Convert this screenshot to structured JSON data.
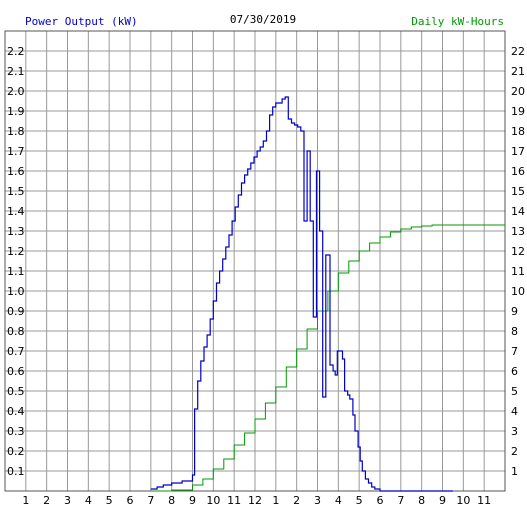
{
  "chart_data": {
    "type": "line",
    "title": "07/30/2019",
    "left_axis_label": "Power Output (kW)",
    "right_axis_label": "Daily kW-Hours",
    "x_tick_labels": [
      "1",
      "2",
      "3",
      "4",
      "5",
      "6",
      "7",
      "8",
      "9",
      "10",
      "11",
      "12",
      "1",
      "2",
      "3",
      "4",
      "5",
      "6",
      "7",
      "8",
      "9",
      "10",
      "11"
    ],
    "x_range_hours": [
      0,
      24
    ],
    "y_left": {
      "range": [
        0,
        2.3
      ],
      "ticks": [
        "0.1",
        "0.2",
        "0.3",
        "0.4",
        "0.5",
        "0.6",
        "0.7",
        "0.8",
        "0.9",
        "1.0",
        "1.1",
        "1.2",
        "1.3",
        "1.4",
        "1.5",
        "1.6",
        "1.7",
        "1.8",
        "1.9",
        "2.0",
        "2.1",
        "2.2"
      ]
    },
    "y_right": {
      "range": [
        0,
        23
      ],
      "ticks": [
        "1",
        "2",
        "3",
        "4",
        "5",
        "6",
        "7",
        "8",
        "9",
        "10",
        "11",
        "12",
        "13",
        "14",
        "15",
        "16",
        "17",
        "18",
        "19",
        "20",
        "21",
        "22"
      ]
    },
    "grid": true,
    "colors": {
      "power": "#0000cc",
      "energy": "#009900",
      "left_labels": "#0000cc",
      "right_labels": "#009900",
      "grid": "#999999"
    },
    "series": [
      {
        "name": "Power Output (kW)",
        "hour": [
          7.0,
          7.3,
          7.6,
          8.0,
          8.2,
          8.5,
          8.8,
          9.0,
          9.1,
          9.25,
          9.4,
          9.55,
          9.7,
          9.85,
          10.0,
          10.15,
          10.3,
          10.45,
          10.6,
          10.75,
          10.9,
          11.05,
          11.2,
          11.35,
          11.5,
          11.65,
          11.8,
          11.95,
          12.1,
          12.25,
          12.4,
          12.55,
          12.7,
          12.85,
          13.0,
          13.15,
          13.3,
          13.45,
          13.6,
          13.75,
          13.9,
          14.05,
          14.2,
          14.35,
          14.5,
          14.65,
          14.8,
          14.95,
          15.1,
          15.25,
          15.4,
          15.5,
          15.6,
          15.75,
          15.85,
          15.95,
          16.05,
          16.2,
          16.3,
          16.45,
          16.55,
          16.7,
          16.8,
          16.95,
          17.05,
          17.15,
          17.3,
          17.45,
          17.6,
          17.75,
          17.9,
          18.0,
          18.15,
          18.3,
          18.45,
          18.6,
          18.75,
          18.9,
          19.05,
          19.2,
          19.35,
          19.5,
          19.65,
          19.8,
          19.95,
          20.1,
          20.3,
          20.5,
          20.8,
          21.2,
          21.5
        ],
        "values": [
          0.01,
          0.02,
          0.03,
          0.04,
          0.04,
          0.05,
          0.05,
          0.08,
          0.41,
          0.55,
          0.65,
          0.72,
          0.78,
          0.86,
          0.95,
          1.04,
          1.1,
          1.16,
          1.22,
          1.28,
          1.35,
          1.42,
          1.48,
          1.54,
          1.58,
          1.61,
          1.64,
          1.67,
          1.7,
          1.72,
          1.75,
          1.8,
          1.88,
          1.92,
          1.94,
          1.94,
          1.96,
          1.97,
          1.86,
          1.84,
          1.83,
          1.82,
          1.8,
          1.35,
          1.7,
          1.35,
          0.87,
          1.6,
          1.3,
          0.47,
          1.18,
          1.18,
          0.63,
          0.6,
          0.58,
          0.7,
          0.7,
          0.66,
          0.5,
          0.48,
          0.46,
          0.38,
          0.3,
          0.22,
          0.15,
          0.1,
          0.06,
          0.04,
          0.02,
          0.01,
          0.01,
          0.0,
          0.0,
          0.0,
          0.0,
          0.0,
          0.0,
          0.0,
          0.0,
          0.0,
          0.0,
          0.0,
          0.0,
          0.0,
          0.0,
          0.0,
          0.0,
          0.0,
          0.0,
          0.0,
          0.0
        ]
      },
      {
        "name": "Daily kW-Hours",
        "hour": [
          7.0,
          8.0,
          9.0,
          9.5,
          10.0,
          10.5,
          11.0,
          11.5,
          12.0,
          12.5,
          13.0,
          13.5,
          14.0,
          14.5,
          15.0,
          15.5,
          16.0,
          16.5,
          17.0,
          17.5,
          18.0,
          18.5,
          19.0,
          19.5,
          20.0,
          20.5,
          21.0,
          22.0,
          23.0,
          24.0
        ],
        "values": [
          0.0,
          0.05,
          0.3,
          0.6,
          1.1,
          1.6,
          2.3,
          2.9,
          3.6,
          4.4,
          5.2,
          6.2,
          7.1,
          8.1,
          9.0,
          10.0,
          10.9,
          11.5,
          12.0,
          12.4,
          12.7,
          12.95,
          13.1,
          13.2,
          13.25,
          13.3,
          13.3,
          13.3,
          13.3,
          13.3
        ]
      }
    ]
  }
}
